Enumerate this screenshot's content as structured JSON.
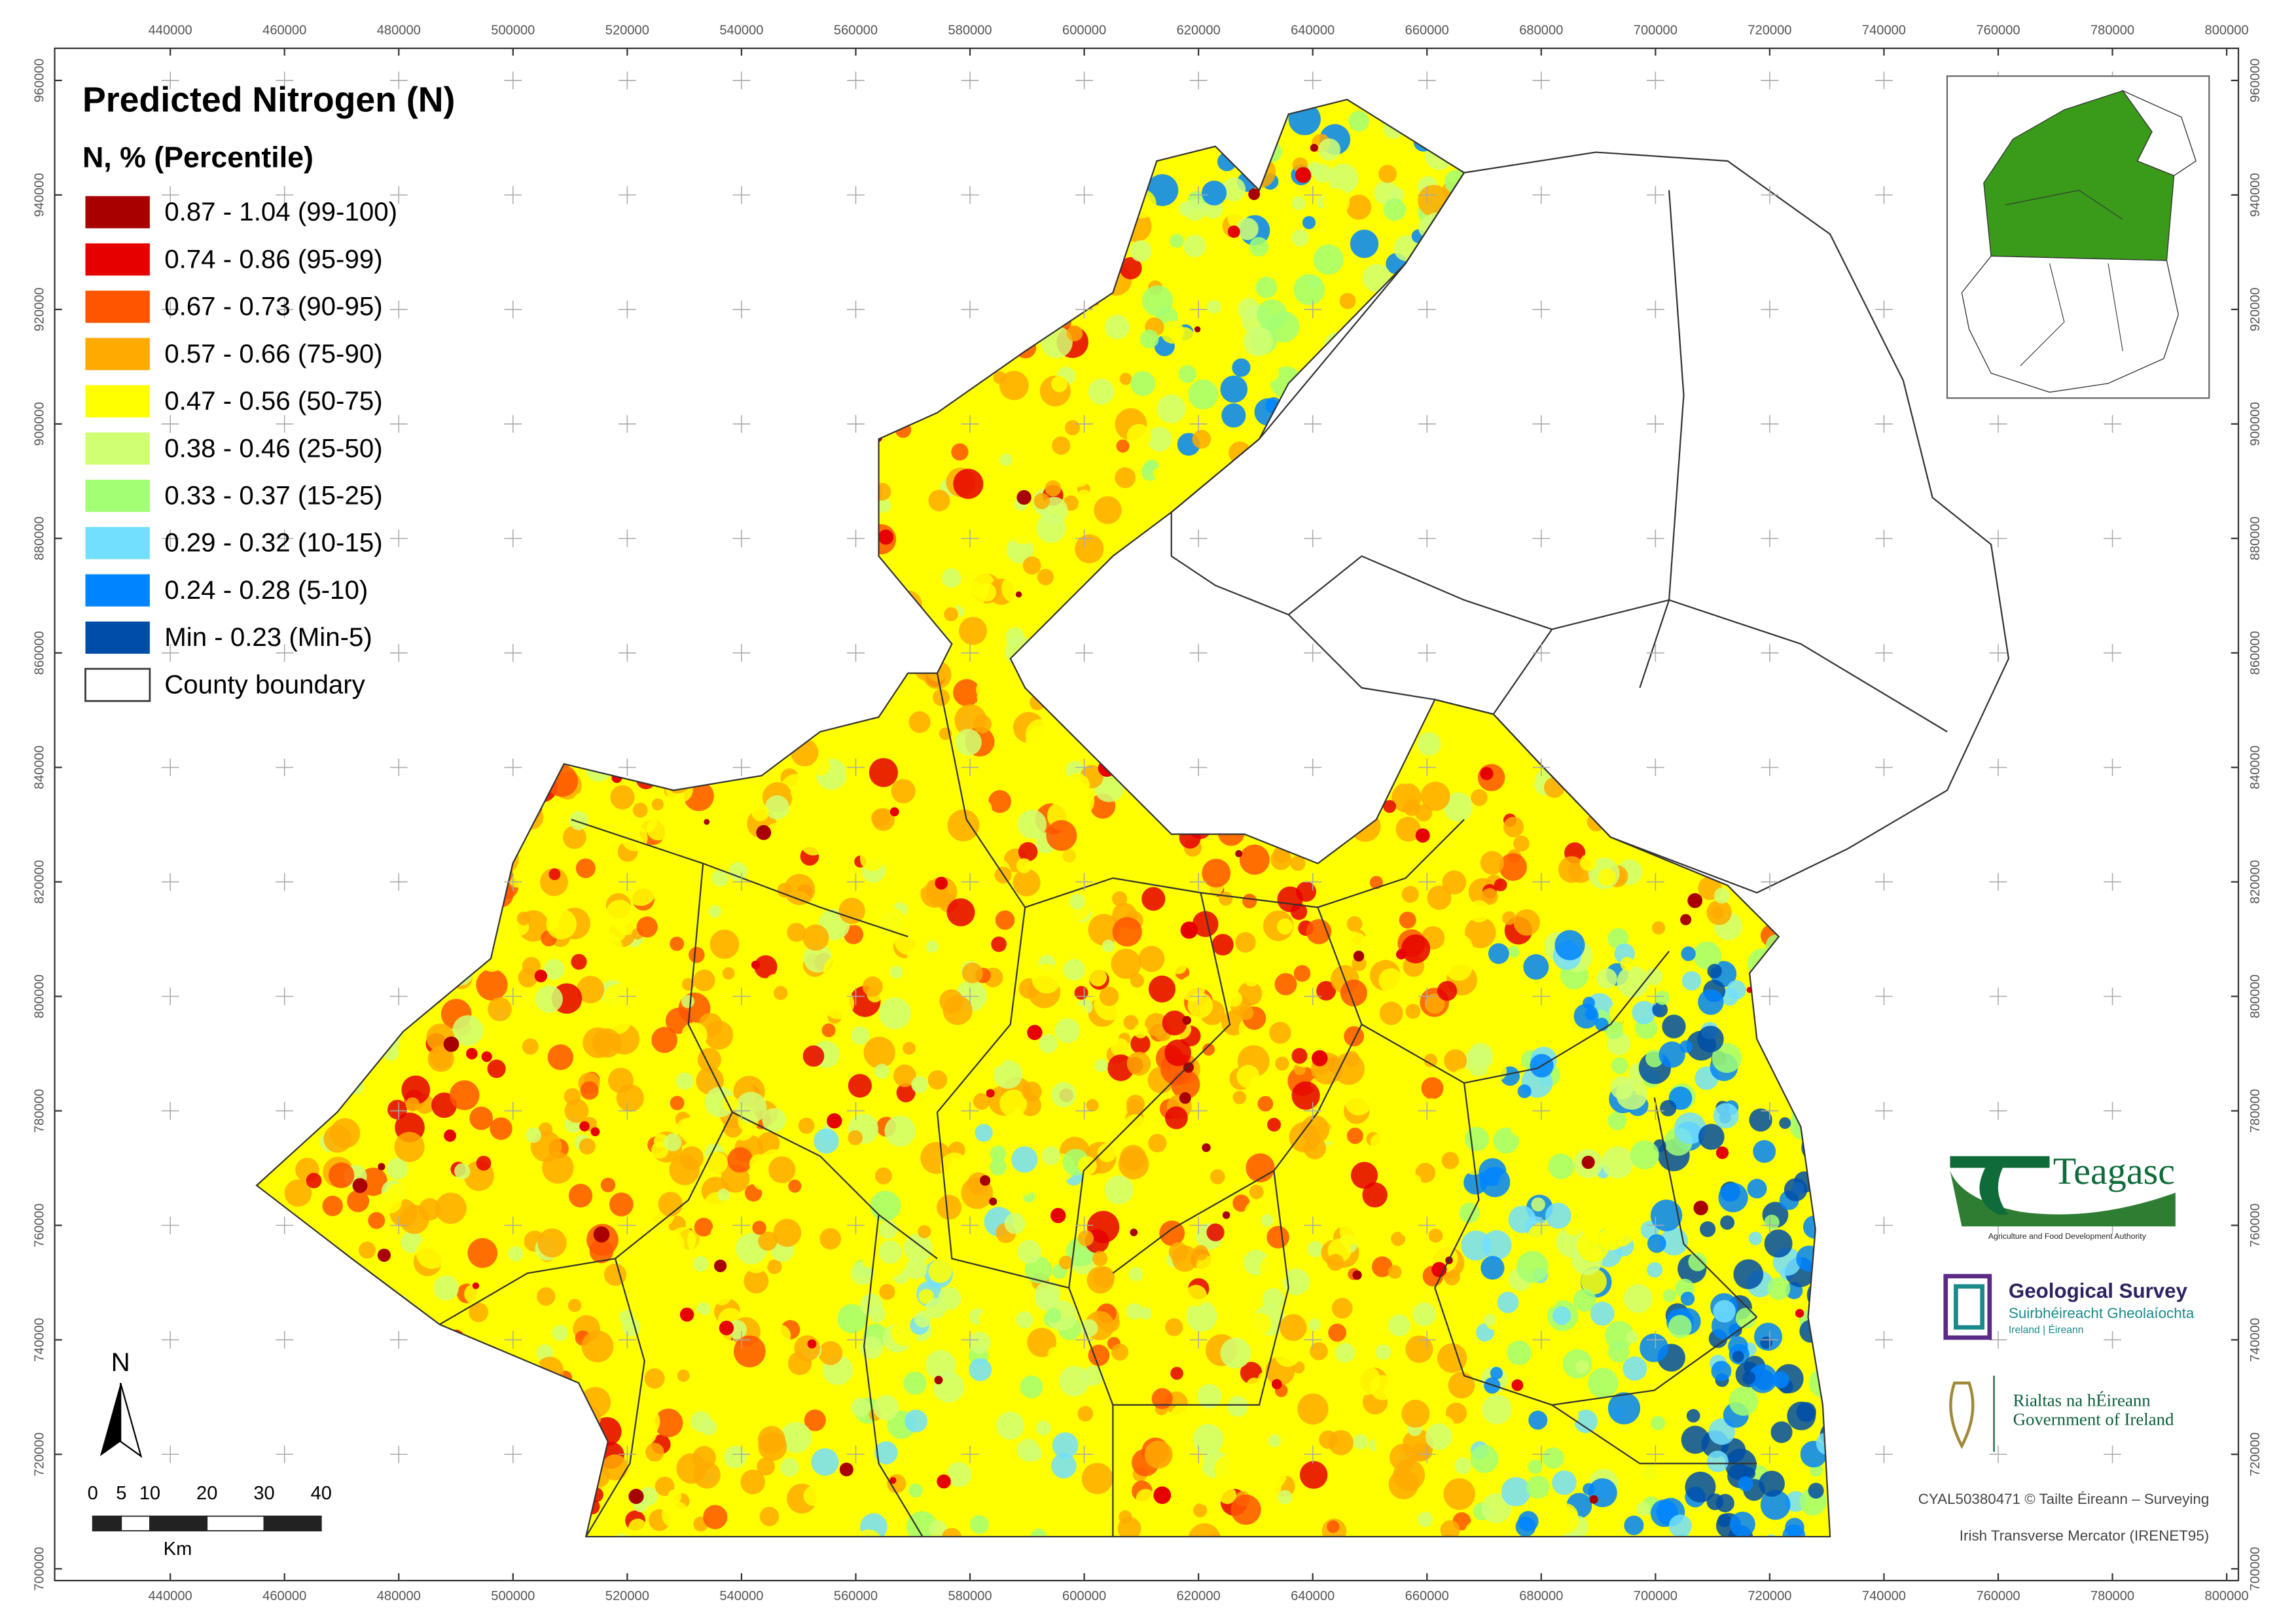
{
  "map": {
    "title": "Predicted Nitrogen (N)",
    "legend_title": "N, % (Percentile)",
    "classes": [
      {
        "label": "0.87 - 1.04 (99-100)",
        "color": "#a80000"
      },
      {
        "label": "0.74 - 0.86 (95-99)",
        "color": "#e60000"
      },
      {
        "label": "0.67 - 0.73 (90-95)",
        "color": "#ff5500"
      },
      {
        "label": "0.57 - 0.66 (75-90)",
        "color": "#ffaa00"
      },
      {
        "label": "0.47 - 0.56 (50-75)",
        "color": "#ffff00"
      },
      {
        "label": "0.38 - 0.46 (25-50)",
        "color": "#d1ff73"
      },
      {
        "label": "0.33 - 0.37 (15-25)",
        "color": "#a3ff73"
      },
      {
        "label": "0.29 - 0.32 (10-15)",
        "color": "#73dfff"
      },
      {
        "label": "0.24 - 0.28 (5-10)",
        "color": "#0084ff"
      },
      {
        "label": "Min - 0.23 (Min-5)",
        "color": "#004da8"
      }
    ],
    "boundary_label": "County boundary",
    "xlim": [
      419760,
      802050
    ],
    "ylim": [
      697950,
      965620
    ],
    "xticks": [
      440000,
      460000,
      480000,
      500000,
      520000,
      540000,
      560000,
      580000,
      600000,
      620000,
      640000,
      660000,
      680000,
      700000,
      720000,
      740000,
      760000,
      780000,
      800000
    ],
    "yticks": [
      700000,
      720000,
      740000,
      760000,
      780000,
      800000,
      820000,
      840000,
      860000,
      880000,
      900000,
      920000,
      940000,
      960000
    ],
    "north": "N",
    "scale_bar": {
      "ticks": [
        0,
        5,
        10,
        20,
        30,
        40
      ],
      "unit": "Km"
    },
    "credits": [
      "CYAL50380471 © Tailte Éireann – Surveying",
      "Irish Transverse Mercator (IRENET95)"
    ],
    "logos": {
      "teagasc": "Teagasc",
      "teagasc_sub": "Agriculture and Food Development Authority",
      "gsi": "Geological Survey",
      "gsi_sub1": "Suirbhéireacht Gheolaíochta",
      "gsi_sub2": "Ireland | Éireann",
      "gov1": "Rialtas na hÉireann",
      "gov2": "Government of Ireland"
    }
  }
}
